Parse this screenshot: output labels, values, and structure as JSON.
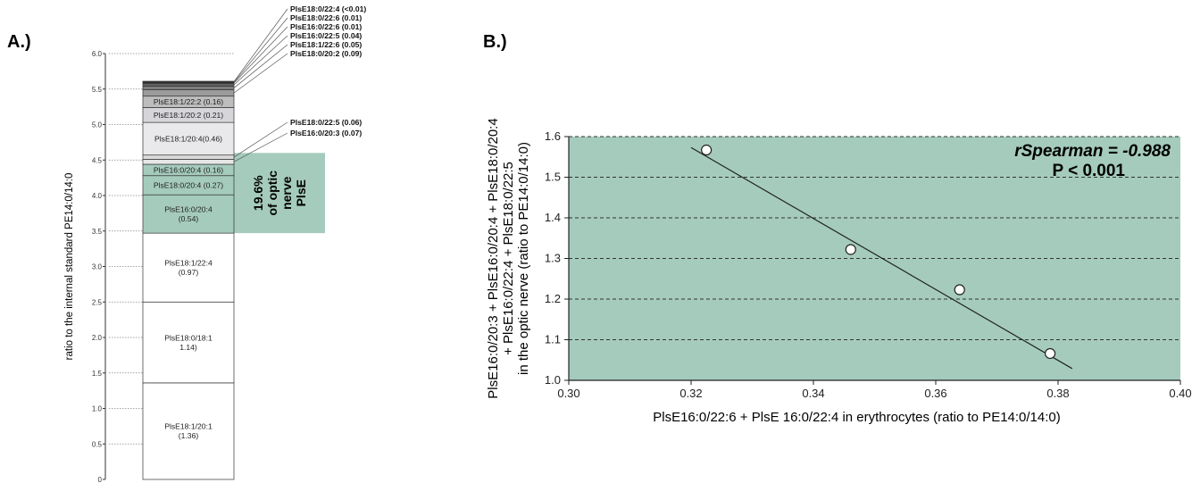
{
  "panels": {
    "a": {
      "label": "A.)"
    },
    "b": {
      "label": "B.)"
    }
  },
  "colors": {
    "highlight": "#a5cbbd",
    "plot_background": "#a5cbbd",
    "grid": "#333333",
    "bar_outline": "#333333",
    "fit_line": "#222222",
    "points_fill": "#ffffff"
  },
  "chart_data": [
    {
      "type": "bar",
      "subtype": "stacked-single-column",
      "ylabel": "ratio to the internal standard PE14:0/14:0",
      "ylim": [
        0,
        6.0
      ],
      "yticks": [
        "0",
        "0.5",
        "1.0",
        "1.5",
        "2.0",
        "2.5",
        "3.0",
        "3.5",
        "4.0",
        "4.5",
        "5.0",
        "5.5",
        "6.0"
      ],
      "grid": "dotted horizontal lines at each tick",
      "segments": [
        {
          "name": "PlsE18:1/20:1",
          "value": 1.36,
          "label_lines": [
            "PlsE18:1/20:1",
            "(1.36)"
          ],
          "fill": "#ffffff",
          "label_mode": "inside"
        },
        {
          "name": "PlsE18:0/18:1",
          "value": 1.14,
          "label_lines": [
            "PlsE18:0/18:1",
            "1.14)"
          ],
          "fill": "#ffffff",
          "label_mode": "inside"
        },
        {
          "name": "PlsE18:1/22:4",
          "value": 0.97,
          "label_lines": [
            "PlsE18:1/22:4",
            "(0.97)"
          ],
          "fill": "#ffffff",
          "label_mode": "inside"
        },
        {
          "name": "PlsE16:0/20:4",
          "value": 0.54,
          "label_lines": [
            "PlsE16:0/20:4",
            "(0.54)"
          ],
          "fill": "#a5cbbd",
          "label_mode": "inside"
        },
        {
          "name": "PlsE18:0/20:4",
          "value": 0.27,
          "label_lines": [
            "PlsE18:0/20:4 (0.27)"
          ],
          "fill": "#a5cbbd",
          "label_mode": "inside"
        },
        {
          "name": "PlsE16:0/20:4",
          "value": 0.16,
          "label_lines": [
            "PlsE16:0/20:4 (0.16)"
          ],
          "fill": "#a5cbbd",
          "label_mode": "inside"
        },
        {
          "name": "PlsE16:0/20:3",
          "value": 0.07,
          "label_lines": [
            "PlsE16:0/20:3 (0.07)"
          ],
          "fill": "#e6e6e6",
          "label_mode": "callout"
        },
        {
          "name": "PlsE18:0/22:5",
          "value": 0.06,
          "label_lines": [
            "PlsE18:0/22:5 (0.06)"
          ],
          "fill": "#dadada",
          "label_mode": "callout"
        },
        {
          "name": "PlsE18:1/20:4",
          "value": 0.46,
          "label_lines": [
            "PlsE18:1/20:4(0.46)"
          ],
          "fill": "#e9e9ec",
          "label_mode": "inside"
        },
        {
          "name": "PlsE18:1/20:2",
          "value": 0.21,
          "label_lines": [
            "PlsE18:1/20:2 (0.21)"
          ],
          "fill": "#d6d6da",
          "label_mode": "inside"
        },
        {
          "name": "PlsE18:1/22:2",
          "value": 0.16,
          "label_lines": [
            "PlsE18:1/22:2 (0.16)"
          ],
          "fill": "#bdbdbd",
          "label_mode": "inside"
        },
        {
          "name": "PlsE18:0/20:2",
          "value": 0.09,
          "label_lines": [
            "PlsE18:0/20:2 (0.09)"
          ],
          "fill": "#9b9b9b",
          "label_mode": "callout"
        },
        {
          "name": "PlsE18:1/22:6",
          "value": 0.05,
          "label_lines": [
            "PlsE18:1/22:6 (0.05)"
          ],
          "fill": "#7e7e7e",
          "label_mode": "callout"
        },
        {
          "name": "PlsE16:0/22:5",
          "value": 0.04,
          "label_lines": [
            "PlsE16:0/22:5 (0.04)"
          ],
          "fill": "#626262",
          "label_mode": "callout"
        },
        {
          "name": "PlsE16:0/22:6",
          "value": 0.01,
          "label_lines": [
            "PlsE16:0/22:6 (0.01)"
          ],
          "fill": "#454545",
          "label_mode": "callout"
        },
        {
          "name": "PlsE18:0/22:6",
          "value": 0.01,
          "label_lines": [
            "PlsE18:0/22:6 (0.01)"
          ],
          "fill": "#2b2b2b",
          "label_mode": "callout"
        },
        {
          "name": "PlsE18:0/22:4",
          "value": 0.01,
          "label_lines": [
            "PlsE18:0/22:4 (<0.01)"
          ],
          "fill": "#111111",
          "label_mode": "callout"
        }
      ],
      "highlight_band": {
        "from": 3.47,
        "to": 4.6
      },
      "annotation_lines": [
        "19.6%",
        "of optic",
        "nerve",
        "PlsE"
      ]
    },
    {
      "type": "scatter",
      "xlabel": "PlsE16:0/22:6 + PlsE 16:0/22:4 in erythrocytes (ratio to PE14:0/14:0)",
      "ylabel_lines": [
        "PlsE16:0/20:3 + PlsE16:0/20:4 + PlsE18:0/20:4",
        "+ PlsE16:0/22:4 + PlsE18:0/22:5",
        "in the optic nerve (ratio to PE14:0/14:0)"
      ],
      "xlim": [
        0.3,
        0.4
      ],
      "ylim": [
        1.0,
        1.6
      ],
      "xticks": [
        "0.30",
        "0.32",
        "0.34",
        "0.36",
        "0.38",
        "0.40"
      ],
      "yticks": [
        "1.0",
        "1.1",
        "1.2",
        "1.3",
        "1.4",
        "1.5",
        "1.6"
      ],
      "grid": "dashed horizontal",
      "points": [
        {
          "x": 0.3225,
          "y": 1.567
        },
        {
          "x": 0.3461,
          "y": 1.322
        },
        {
          "x": 0.3639,
          "y": 1.223
        },
        {
          "x": 0.3787,
          "y": 1.066
        }
      ],
      "fit_line": {
        "x1": 0.32,
        "y1": 1.573,
        "x2": 0.3823,
        "y2": 1.029
      },
      "annotation": {
        "stat_line": "rSpearman = -0.988",
        "p_line": "P < 0.001"
      }
    }
  ]
}
